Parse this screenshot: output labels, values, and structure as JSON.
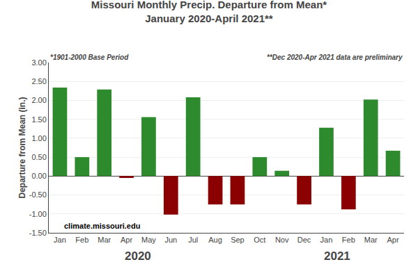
{
  "chart_data": {
    "type": "bar",
    "title": "Missouri Monthly Precip. Departure from Mean*",
    "subtitle": "January 2020-April 2021**",
    "ylabel": "Departure from Mean (in.)",
    "annotations": [
      "*1901-2000 Base Period",
      "**Dec 2020-Apr 2021 data are preliminary",
      "climate.missouri.edu",
      "2020",
      "2021"
    ],
    "categories": [
      "Jan",
      "Feb",
      "Mar",
      "Apr",
      "May",
      "Jun",
      "Jul",
      "Aug",
      "Sep",
      "Oct",
      "Nov",
      "Dec",
      "Jan",
      "Feb",
      "Mar",
      "Apr"
    ],
    "values": [
      2.34,
      0.5,
      2.29,
      -0.05,
      1.56,
      -1.02,
      2.08,
      -0.75,
      -0.75,
      0.5,
      0.14,
      -0.75,
      1.28,
      -0.88,
      2.02,
      0.67
    ],
    "colors": [
      "#2d8a2d",
      "#2d8a2d",
      "#2d8a2d",
      "#8b0000",
      "#2d8a2d",
      "#8b0000",
      "#2d8a2d",
      "#8b0000",
      "#8b0000",
      "#2d8a2d",
      "#2d8a2d",
      "#8b0000",
      "#2d8a2d",
      "#8b0000",
      "#2d8a2d",
      "#2d8a2d"
    ],
    "ylim": [
      -1.5,
      3.0
    ],
    "yticks": [
      {
        "value": -1.5,
        "label": "-1.50"
      },
      {
        "value": -1.0,
        "label": "-1.00"
      },
      {
        "value": -0.5,
        "label": "-0.50"
      },
      {
        "value": 0.0,
        "label": "0.00"
      },
      {
        "value": 0.5,
        "label": "0.50"
      },
      {
        "value": 1.0,
        "label": "1.00"
      },
      {
        "value": 1.5,
        "label": "1.50"
      },
      {
        "value": 2.0,
        "label": "2.00"
      },
      {
        "value": 2.5,
        "label": "2.50"
      },
      {
        "value": 3.0,
        "label": "3.00"
      }
    ],
    "grid": true
  }
}
